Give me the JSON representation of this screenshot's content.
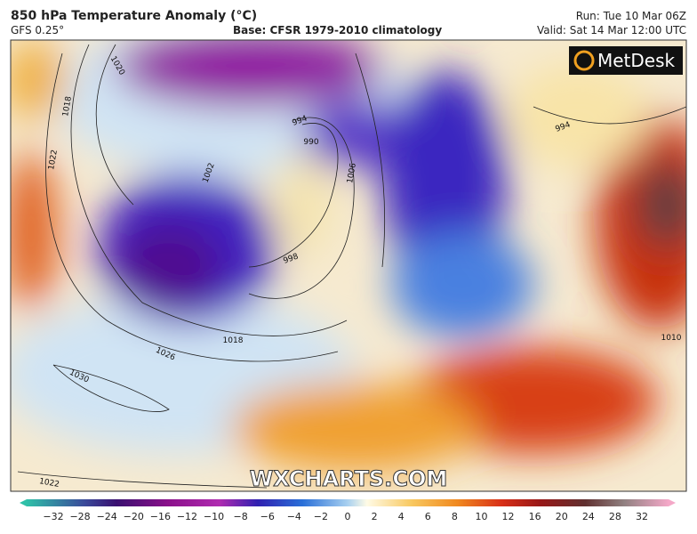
{
  "header": {
    "title": "850 hPa Temperature Anomaly (°C)",
    "model": "GFS 0.25°",
    "base": "Base: CFSR 1979-2010 climatology",
    "run": "Run: Tue 10 Mar 06Z",
    "valid": "Valid: Sat 14 Mar 12:00 UTC"
  },
  "map": {
    "isobar_labels": [
      "1020",
      "1018",
      "1022",
      "1026",
      "1030",
      "1018",
      "994",
      "990",
      "1002",
      "998",
      "1006",
      "994",
      "1010",
      "1022"
    ],
    "watermark": "WXCHARTS.COM",
    "logo": "MetDesk"
  },
  "colorbar": {
    "labels": [
      "−32",
      "−28",
      "−24",
      "−20",
      "−16",
      "−12",
      "−10",
      "−8",
      "−6",
      "−4",
      "−2",
      "0",
      "2",
      "4",
      "6",
      "8",
      "10",
      "12",
      "16",
      "20",
      "24",
      "28",
      "32"
    ]
  }
}
